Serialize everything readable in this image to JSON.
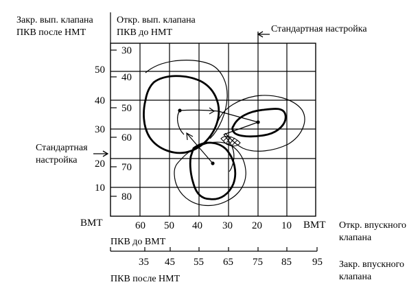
{
  "top_left_label": {
    "line1": "Закр. вып. клапана",
    "line2": "ПКВ после НМТ"
  },
  "top_right_label": {
    "line1": "Откр. вып. клапана",
    "line2": "ПКВ до НМТ"
  },
  "standard_setting_top": "Стандартная настройка",
  "standard_setting_left": {
    "line1": "Стандартная",
    "line2": "настройка"
  },
  "left_axis_ticks": [
    "50",
    "40",
    "30",
    "20",
    "10"
  ],
  "inner_axis_ticks": [
    "30",
    "40",
    "50",
    "60",
    "70",
    "80"
  ],
  "bmt_left": "ВМТ",
  "bmt_right": "ВМТ",
  "bottom_axis1_ticks": [
    "60",
    "50",
    "40",
    "30",
    "20",
    "10"
  ],
  "bottom_axis1_label": "ПКВ до ВМТ",
  "intake_open_label": {
    "line1": "Откр. впускного",
    "line2": "клапана"
  },
  "bottom_axis2_ticks": [
    "35",
    "45",
    "55",
    "65",
    "75",
    "85",
    "95"
  ],
  "bottom_axis2_label": "ПКВ после НМТ",
  "intake_close_label": {
    "line1": "Закр. впускного",
    "line2": "клапана"
  }
}
